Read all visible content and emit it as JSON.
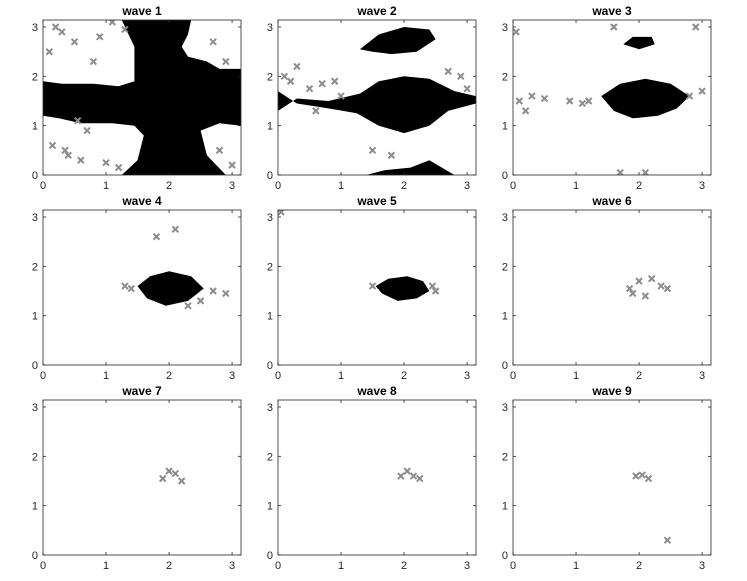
{
  "chart_data": [
    {
      "type": "scatter",
      "title": "wave 1",
      "xlim": [
        0,
        3.14159
      ],
      "ylim": [
        0,
        3.14159
      ],
      "xticks": [
        "0",
        "1",
        "2",
        "3"
      ],
      "yticks": [
        "0",
        "1",
        "2",
        "3"
      ],
      "black_region": [
        [
          0.0,
          1.9
        ],
        [
          0.3,
          1.85
        ],
        [
          0.8,
          1.85
        ],
        [
          1.2,
          1.8
        ],
        [
          1.45,
          1.9
        ],
        [
          1.45,
          2.6
        ],
        [
          1.25,
          3.14
        ],
        [
          2.35,
          3.14
        ],
        [
          2.3,
          2.85
        ],
        [
          2.2,
          2.6
        ],
        [
          2.3,
          2.4
        ],
        [
          2.6,
          2.3
        ],
        [
          2.8,
          2.15
        ],
        [
          3.14,
          2.15
        ],
        [
          3.14,
          1.0
        ],
        [
          2.8,
          1.05
        ],
        [
          2.5,
          0.9
        ],
        [
          2.6,
          0.4
        ],
        [
          2.9,
          0.0
        ],
        [
          1.25,
          0.0
        ],
        [
          1.5,
          0.3
        ],
        [
          1.6,
          0.8
        ],
        [
          1.45,
          1.0
        ],
        [
          1.1,
          1.05
        ],
        [
          0.6,
          1.05
        ],
        [
          0.25,
          1.15
        ],
        [
          0.0,
          1.2
        ]
      ],
      "series": [
        {
          "marker": "x",
          "color": "#8c8c8c",
          "x": [
            0.1,
            0.3,
            0.5,
            0.6,
            0.8,
            1.0,
            0.15,
            0.4,
            0.7,
            0.9,
            1.2,
            2.7,
            2.9,
            3.0,
            2.8,
            0.2,
            0.35,
            0.55,
            1.1,
            1.3
          ],
          "y": [
            2.5,
            2.9,
            2.7,
            0.3,
            2.3,
            0.25,
            0.6,
            0.4,
            0.9,
            2.8,
            0.15,
            2.7,
            2.3,
            0.2,
            0.5,
            3.0,
            0.5,
            1.1,
            3.1,
            2.95
          ]
        }
      ]
    },
    {
      "type": "scatter",
      "title": "wave 2",
      "xlim": [
        0,
        3.14159
      ],
      "ylim": [
        0,
        3.14159
      ],
      "xticks": [
        "0",
        "1",
        "2",
        "3"
      ],
      "yticks": [
        "0",
        "1",
        "2",
        "3"
      ],
      "black_region": [
        [
          0.0,
          1.3
        ],
        [
          0.3,
          1.55
        ],
        [
          0.8,
          1.5
        ],
        [
          1.3,
          1.65
        ],
        [
          1.6,
          1.9
        ],
        [
          2.0,
          2.0
        ],
        [
          2.4,
          1.95
        ],
        [
          2.8,
          1.7
        ],
        [
          3.14,
          1.6
        ],
        [
          3.14,
          1.45
        ],
        [
          2.7,
          1.3
        ],
        [
          2.4,
          1.0
        ],
        [
          2.0,
          0.85
        ],
        [
          1.6,
          1.0
        ],
        [
          1.25,
          1.25
        ],
        [
          0.8,
          1.35
        ],
        [
          0.3,
          1.45
        ],
        [
          0.0,
          1.7
        ]
      ],
      "black_blob_top": [
        [
          1.3,
          2.55
        ],
        [
          1.6,
          2.85
        ],
        [
          2.0,
          3.0
        ],
        [
          2.4,
          2.95
        ],
        [
          2.5,
          2.75
        ],
        [
          2.2,
          2.5
        ],
        [
          1.8,
          2.45
        ],
        [
          1.5,
          2.5
        ]
      ],
      "black_blob_bottom": [
        [
          1.4,
          0.0
        ],
        [
          1.7,
          0.1
        ],
        [
          2.1,
          0.15
        ],
        [
          2.4,
          0.3
        ],
        [
          2.6,
          0.15
        ],
        [
          2.8,
          0.0
        ]
      ],
      "series": [
        {
          "marker": "x",
          "color": "#8c8c8c",
          "x": [
            0.1,
            0.3,
            0.5,
            0.7,
            0.9,
            1.0,
            2.9,
            3.0,
            2.7,
            0.2,
            0.6,
            1.5,
            1.8
          ],
          "y": [
            2.0,
            2.2,
            1.75,
            1.85,
            1.9,
            1.6,
            2.0,
            1.75,
            2.1,
            1.9,
            1.3,
            0.5,
            0.4
          ]
        }
      ]
    },
    {
      "type": "scatter",
      "title": "wave 3",
      "xlim": [
        0,
        3.14159
      ],
      "ylim": [
        0,
        3.14159
      ],
      "xticks": [
        "0",
        "1",
        "2",
        "3"
      ],
      "yticks": [
        "0",
        "1",
        "2",
        "3"
      ],
      "black_region": [
        [
          1.4,
          1.6
        ],
        [
          1.7,
          1.85
        ],
        [
          2.1,
          1.95
        ],
        [
          2.5,
          1.85
        ],
        [
          2.8,
          1.6
        ],
        [
          2.6,
          1.35
        ],
        [
          2.3,
          1.2
        ],
        [
          1.9,
          1.15
        ],
        [
          1.6,
          1.3
        ]
      ],
      "black_blob_top": [
        [
          1.75,
          2.65
        ],
        [
          1.9,
          2.8
        ],
        [
          2.2,
          2.8
        ],
        [
          2.25,
          2.65
        ],
        [
          2.0,
          2.55
        ]
      ],
      "series": [
        {
          "marker": "x",
          "color": "#8c8c8c",
          "x": [
            0.1,
            0.2,
            0.3,
            0.5,
            0.9,
            1.1,
            2.8,
            3.0,
            0.05,
            1.2,
            1.6,
            2.9,
            2.1,
            1.7
          ],
          "y": [
            1.5,
            1.3,
            1.6,
            1.55,
            1.5,
            1.45,
            1.6,
            1.7,
            2.9,
            1.5,
            3.0,
            3.0,
            0.05,
            0.05
          ]
        }
      ]
    },
    {
      "type": "scatter",
      "title": "wave 4",
      "xlim": [
        0,
        3.14159
      ],
      "ylim": [
        0,
        3.14159
      ],
      "xticks": [
        "0",
        "1",
        "2",
        "3"
      ],
      "yticks": [
        "0",
        "1",
        "2",
        "3"
      ],
      "black_region": [
        [
          1.5,
          1.6
        ],
        [
          1.7,
          1.8
        ],
        [
          2.0,
          1.9
        ],
        [
          2.35,
          1.8
        ],
        [
          2.55,
          1.55
        ],
        [
          2.3,
          1.3
        ],
        [
          1.95,
          1.2
        ],
        [
          1.65,
          1.35
        ]
      ],
      "series": [
        {
          "marker": "x",
          "color": "#8c8c8c",
          "x": [
            1.3,
            1.4,
            2.7,
            2.9,
            1.8,
            2.1,
            2.5,
            2.3
          ],
          "y": [
            1.6,
            1.55,
            1.5,
            1.45,
            2.6,
            2.75,
            1.3,
            1.2
          ]
        }
      ]
    },
    {
      "type": "scatter",
      "title": "wave 5",
      "xlim": [
        0,
        3.14159
      ],
      "ylim": [
        0,
        3.14159
      ],
      "xticks": [
        "0",
        "1",
        "2",
        "3"
      ],
      "yticks": [
        "0",
        "1",
        "2",
        "3"
      ],
      "black_region": [
        [
          1.55,
          1.6
        ],
        [
          1.75,
          1.75
        ],
        [
          2.05,
          1.8
        ],
        [
          2.3,
          1.7
        ],
        [
          2.4,
          1.5
        ],
        [
          2.2,
          1.35
        ],
        [
          1.9,
          1.3
        ],
        [
          1.65,
          1.45
        ]
      ],
      "series": [
        {
          "marker": "x",
          "color": "#8c8c8c",
          "x": [
            0.05,
            1.5,
            2.5,
            2.45
          ],
          "y": [
            3.1,
            1.6,
            1.5,
            1.6
          ]
        }
      ]
    },
    {
      "type": "scatter",
      "title": "wave 6",
      "xlim": [
        0,
        3.14159
      ],
      "ylim": [
        0,
        3.14159
      ],
      "xticks": [
        "0",
        "1",
        "2",
        "3"
      ],
      "yticks": [
        "0",
        "1",
        "2",
        "3"
      ],
      "series": [
        {
          "marker": "x",
          "color": "#8c8c8c",
          "x": [
            1.85,
            2.0,
            2.2,
            2.35,
            2.45,
            1.9,
            2.1
          ],
          "y": [
            1.55,
            1.7,
            1.75,
            1.6,
            1.55,
            1.45,
            1.4
          ]
        }
      ]
    },
    {
      "type": "scatter",
      "title": "wave 7",
      "xlim": [
        0,
        3.14159
      ],
      "ylim": [
        0,
        3.14159
      ],
      "xticks": [
        "0",
        "1",
        "2",
        "3"
      ],
      "yticks": [
        "0",
        "1",
        "2",
        "3"
      ],
      "series": [
        {
          "marker": "x",
          "color": "#8c8c8c",
          "x": [
            1.9,
            2.0,
            2.1,
            2.2
          ],
          "y": [
            1.55,
            1.7,
            1.65,
            1.5
          ]
        }
      ]
    },
    {
      "type": "scatter",
      "title": "wave 8",
      "xlim": [
        0,
        3.14159
      ],
      "ylim": [
        0,
        3.14159
      ],
      "xticks": [
        "0",
        "1",
        "2",
        "3"
      ],
      "yticks": [
        "0",
        "1",
        "2",
        "3"
      ],
      "series": [
        {
          "marker": "x",
          "color": "#8c8c8c",
          "x": [
            1.95,
            2.05,
            2.15,
            2.25
          ],
          "y": [
            1.6,
            1.7,
            1.6,
            1.55
          ]
        }
      ]
    },
    {
      "type": "scatter",
      "title": "wave 9",
      "xlim": [
        0,
        3.14159
      ],
      "ylim": [
        0,
        3.14159
      ],
      "xticks": [
        "0",
        "1",
        "2",
        "3"
      ],
      "yticks": [
        "0",
        "1",
        "2",
        "3"
      ],
      "series": [
        {
          "marker": "x",
          "color": "#8c8c8c",
          "x": [
            1.95,
            2.05,
            2.15,
            2.45
          ],
          "y": [
            1.6,
            1.62,
            1.55,
            0.3
          ]
        }
      ]
    }
  ]
}
